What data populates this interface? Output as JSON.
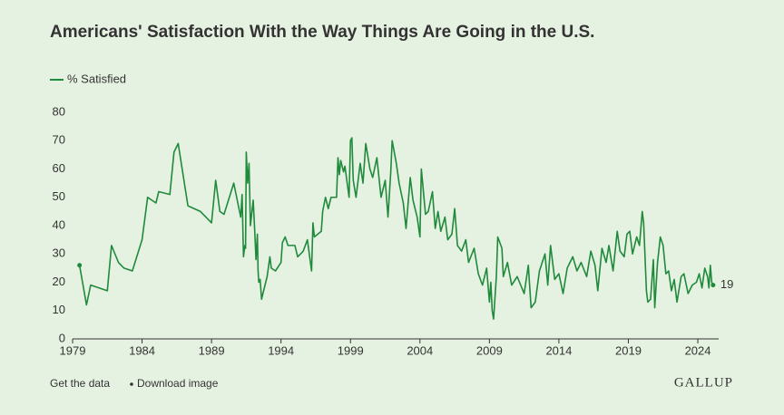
{
  "chart_data": {
    "type": "line",
    "title": "Americans' Satisfaction With the Way Things Are Going in the U.S.",
    "x": [
      1979.5,
      1980.0,
      1980.3,
      1981.5,
      1981.8,
      1982.3,
      1982.7,
      1983.3,
      1984.0,
      1984.4,
      1985.0,
      1985.2,
      1986.0,
      1986.3,
      1986.6,
      1987.3,
      1988.2,
      1989.0,
      1989.3,
      1989.6,
      1989.9,
      1990.6,
      1991.1,
      1991.2,
      1991.3,
      1991.4,
      1991.45,
      1991.5,
      1991.6,
      1991.7,
      1991.8,
      1992.0,
      1992.1,
      1992.2,
      1992.3,
      1992.35,
      1992.4,
      1992.5,
      1992.6,
      1992.8,
      1993.0,
      1993.2,
      1993.3,
      1993.6,
      1994.0,
      1994.1,
      1994.3,
      1994.5,
      1995.0,
      1995.2,
      1995.6,
      1995.9,
      1996.2,
      1996.3,
      1996.4,
      1996.9,
      1997.0,
      1997.2,
      1997.4,
      1997.6,
      1998.0,
      1998.1,
      1998.2,
      1998.3,
      1998.5,
      1998.6,
      1998.9,
      1999.0,
      1999.1,
      1999.2,
      1999.4,
      1999.7,
      1999.9,
      2000.1,
      2000.4,
      2000.6,
      2000.9,
      2001.2,
      2001.5,
      2001.7,
      2001.9,
      2002.0,
      2002.3,
      2002.5,
      2002.8,
      2003.0,
      2003.3,
      2003.5,
      2003.8,
      2004.0,
      2004.1,
      2004.4,
      2004.6,
      2004.9,
      2005.1,
      2005.3,
      2005.5,
      2005.8,
      2006.0,
      2006.3,
      2006.5,
      2006.7,
      2007.0,
      2007.3,
      2007.5,
      2007.9,
      2008.2,
      2008.5,
      2008.8,
      2009.0,
      2009.1,
      2009.2,
      2009.3,
      2009.5,
      2009.6,
      2009.9,
      2010.0,
      2010.3,
      2010.6,
      2011.0,
      2011.5,
      2011.8,
      2012.0,
      2012.3,
      2012.6,
      2013.0,
      2013.2,
      2013.4,
      2013.7,
      2014.0,
      2014.3,
      2014.6,
      2015.0,
      2015.3,
      2015.6,
      2016.0,
      2016.3,
      2016.6,
      2016.8,
      2017.1,
      2017.4,
      2017.6,
      2017.9,
      2018.2,
      2018.4,
      2018.7,
      2018.9,
      2019.1,
      2019.3,
      2019.6,
      2019.8,
      2020.0,
      2020.1,
      2020.3,
      2020.4,
      2020.6,
      2020.8,
      2020.9,
      2021.1,
      2021.3,
      2021.5,
      2021.7,
      2021.9,
      2022.1,
      2022.3,
      2022.5,
      2022.8,
      2023.0,
      2023.3,
      2023.6,
      2023.9,
      2024.1,
      2024.3,
      2024.5,
      2024.7,
      2024.8,
      2024.9,
      2025.0,
      2025.1
    ],
    "series": [
      {
        "name": "% Satisfied",
        "color": "#1f8a3c",
        "values": [
          26,
          12,
          19,
          17,
          33,
          27,
          25,
          24,
          35,
          50,
          48,
          52,
          51,
          66,
          69,
          47,
          45,
          41,
          56,
          45,
          44,
          55,
          43,
          51,
          29,
          33,
          32,
          66,
          55,
          62,
          40,
          49,
          39,
          28,
          37,
          24,
          20,
          21,
          14,
          18,
          22,
          29,
          25,
          24,
          27,
          34,
          36,
          33,
          33,
          29,
          31,
          35,
          24,
          41,
          36,
          38,
          45,
          50,
          46,
          50,
          50,
          64,
          58,
          63,
          59,
          61,
          50,
          70,
          71,
          56,
          50,
          62,
          55,
          69,
          60,
          57,
          64,
          50,
          56,
          43,
          59,
          70,
          62,
          55,
          48,
          39,
          57,
          49,
          43,
          36,
          60,
          44,
          45,
          52,
          39,
          45,
          38,
          43,
          35,
          37,
          46,
          33,
          31,
          35,
          27,
          32,
          23,
          19,
          25,
          13,
          20,
          10,
          7,
          22,
          36,
          32,
          22,
          27,
          19,
          22,
          16,
          26,
          11,
          13,
          24,
          30,
          19,
          33,
          21,
          23,
          16,
          25,
          29,
          24,
          27,
          22,
          31,
          26,
          17,
          32,
          27,
          33,
          24,
          38,
          31,
          29,
          37,
          38,
          30,
          36,
          33,
          45,
          41,
          17,
          13,
          14,
          28,
          11,
          27,
          36,
          33,
          23,
          24,
          17,
          21,
          13,
          22,
          23,
          16,
          19,
          20,
          23,
          18,
          25,
          22,
          18,
          26,
          20,
          19
        ]
      }
    ],
    "xlim": [
      1979,
      2025.5
    ],
    "xticks": [
      1979,
      1984,
      1989,
      1994,
      1999,
      2004,
      2009,
      2014,
      2019,
      2024
    ],
    "ylim": [
      0,
      80
    ],
    "yticks": [
      0,
      10,
      20,
      30,
      40,
      50,
      60,
      70,
      80
    ],
    "grid": false
  },
  "footer_links": [
    "Get the data",
    "Download image"
  ],
  "brand": "GALLUP"
}
